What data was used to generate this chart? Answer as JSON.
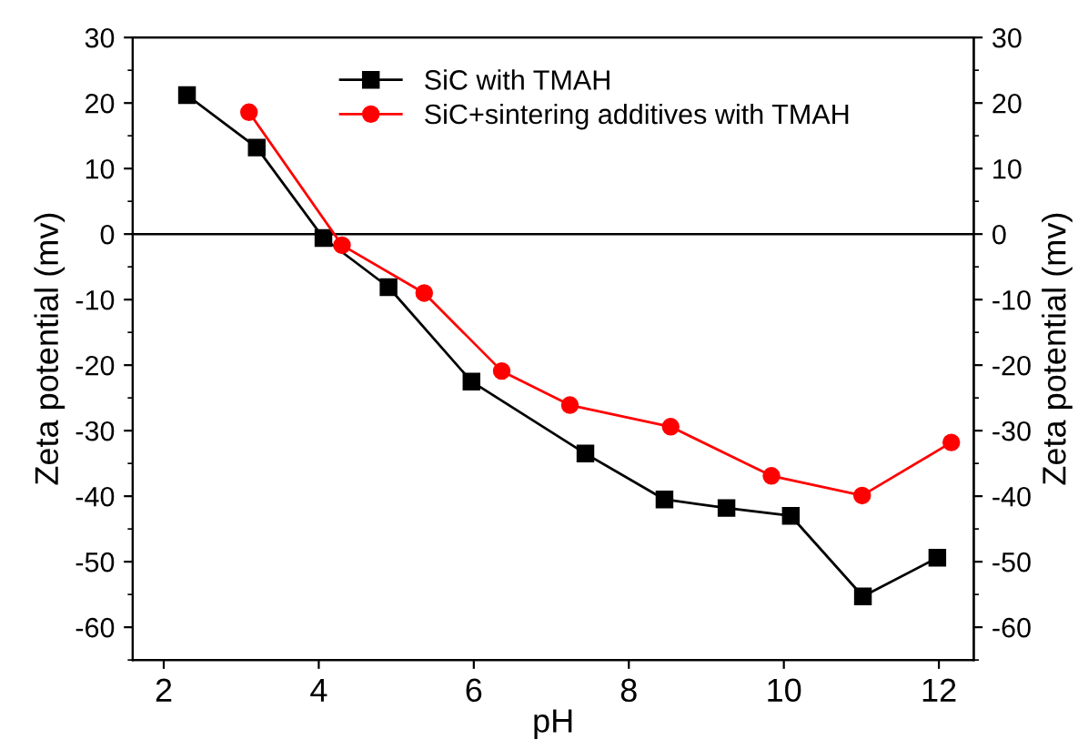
{
  "chart_data": {
    "type": "line",
    "xlabel": "pH",
    "ylabel": "Zeta potential (mv)",
    "y2label": "Zeta potential (mv)",
    "xlim": [
      1.6,
      12.45
    ],
    "xticks": [
      2,
      4,
      6,
      8,
      10,
      12
    ],
    "ylim": [
      -65,
      30
    ],
    "yticks": [
      -60,
      -50,
      -40,
      -30,
      -20,
      -10,
      0,
      10,
      20,
      30
    ],
    "y2lim": [
      -65,
      30
    ],
    "y2ticks": [
      -60,
      -50,
      -40,
      -30,
      -20,
      -10,
      0,
      10,
      20,
      30
    ],
    "grid": false,
    "legend": "top",
    "line_style": "solid",
    "ref_lines": [
      {
        "axis": "y",
        "value": 0,
        "color": "#000000",
        "line_style": "solid"
      }
    ],
    "series": [
      {
        "name": "SiC with TMAH",
        "color": "#000000",
        "marker": "square",
        "x": [
          2.3,
          3.2,
          4.06,
          4.9,
          5.97,
          7.44,
          8.46,
          9.26,
          10.09,
          11.02,
          11.98
        ],
        "values": [
          21.2,
          13.2,
          -0.6,
          -8.1,
          -22.5,
          -33.5,
          -40.5,
          -41.8,
          -43,
          -55.3,
          -49.4
        ]
      },
      {
        "name": "SiC+sintering additives with TMAH",
        "color": "#ff0000",
        "marker": "circle",
        "x": [
          3.1,
          4.3,
          5.36,
          6.36,
          7.24,
          8.54,
          9.84,
          11.01,
          12.16
        ],
        "values": [
          18.6,
          -1.7,
          -9,
          -20.9,
          -26.1,
          -29.4,
          -36.9,
          -39.9,
          -31.8
        ]
      }
    ]
  }
}
